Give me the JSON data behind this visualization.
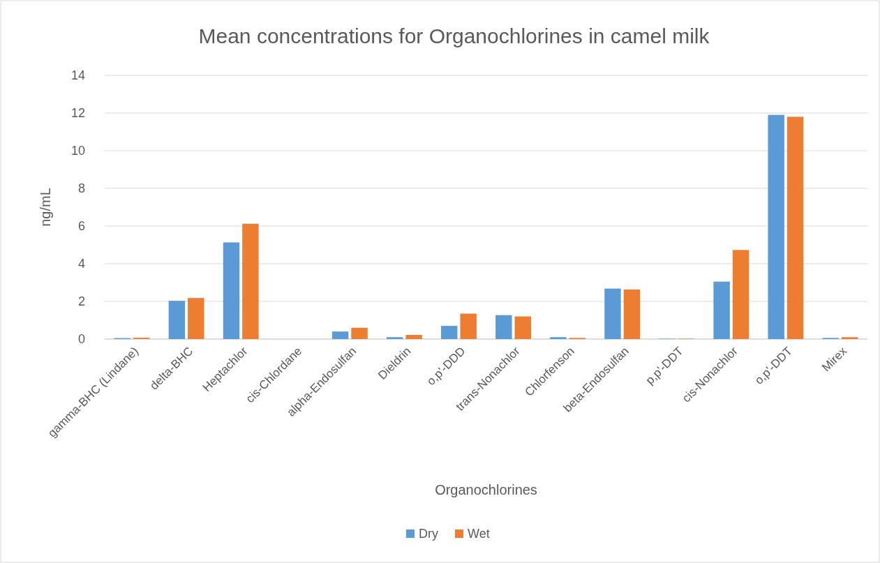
{
  "chart_data": {
    "type": "bar",
    "title": "Mean concentrations for Organochlorines in camel milk",
    "xlabel": "Organochlorines",
    "ylabel": "ng/mL",
    "categories": [
      "gamma-BHC (Lindane)",
      "delta-BHC",
      "Heptachlor",
      "cis-Chlordane",
      "alpha-Endosulfan",
      "Dieldrin",
      "o,p'-DDD",
      "trans-Nonachlor",
      "Chlorfenson",
      "beta-Endosulfan",
      "p,p'-DDT",
      "cis-Nonachlor",
      "o,p'-DDT",
      "Mirex"
    ],
    "series": [
      {
        "name": "Dry",
        "color": "#5b9bd5",
        "values": [
          0.05,
          2.03,
          5.13,
          0,
          0.4,
          0.1,
          0.7,
          1.27,
          0.1,
          2.68,
          0.02,
          3.05,
          11.9,
          0.06
        ]
      },
      {
        "name": "Wet",
        "color": "#ed7d31",
        "values": [
          0.07,
          2.18,
          6.12,
          0,
          0.6,
          0.22,
          1.35,
          1.2,
          0.06,
          2.63,
          0.02,
          4.73,
          11.8,
          0.1
        ]
      }
    ],
    "ylim": [
      0,
      14
    ],
    "yticks": [
      0,
      2,
      4,
      6,
      8,
      10,
      12,
      14
    ],
    "grid": "y",
    "legend": "bottom"
  }
}
